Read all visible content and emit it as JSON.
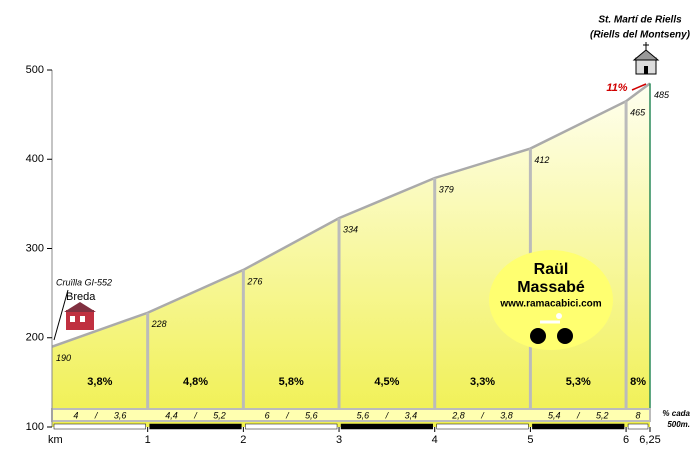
{
  "chart_data": {
    "type": "area",
    "title": "St. Martí de Riells",
    "subtitle": "(Riells del Montseny)",
    "start_labels": [
      "Cruïlla GI-552",
      "Breda"
    ],
    "x_label": "km",
    "x": [
      0,
      1,
      2,
      3,
      4,
      5,
      6,
      6.25
    ],
    "values": [
      190,
      228,
      276,
      334,
      379,
      412,
      465,
      485
    ],
    "xlim": [
      0,
      6.25
    ],
    "ylim": [
      100,
      500
    ],
    "xticks": [
      1,
      2,
      3,
      4,
      5,
      6,
      {
        "value": 6.25,
        "label": "6,25"
      }
    ],
    "yticks": [
      100,
      200,
      300,
      400,
      500
    ],
    "gradient_labels": [
      "3,8%",
      "4,8%",
      "5,8%",
      "4,5%",
      "3,3%",
      "5,3%",
      "8%"
    ],
    "half_km_labels": [
      "4 / 3,6",
      "4,4 / 5,2",
      "6 / 5,6",
      "5,6 / 3,4",
      "2,8 / 3,8",
      "5,4 / 5,2",
      "8"
    ],
    "half_km_note": [
      "% cada",
      "500m."
    ],
    "max_gradient": "11%",
    "logo": [
      "Raül",
      "Massabé",
      "www.ramacabici.com"
    ],
    "color": "#f0f050"
  }
}
